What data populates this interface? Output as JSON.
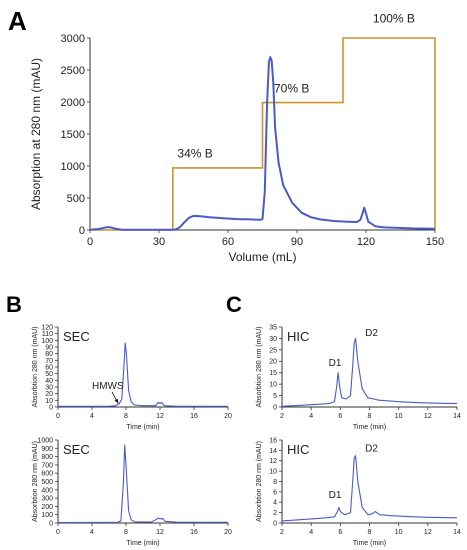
{
  "panels": {
    "a": "A",
    "b": "B",
    "c": "C"
  },
  "colors": {
    "trace": "#4a5bc4",
    "gradient": "#c9962e",
    "axis": "#333333"
  },
  "chart_data": [
    {
      "id": "A",
      "type": "line",
      "xlabel": "Volume (mL)",
      "ylabel": "Absorption at 280 nm (mAU)",
      "xlim": [
        0,
        150
      ],
      "ylim": [
        0,
        3000
      ],
      "xticks": [
        0,
        30,
        60,
        90,
        120,
        150
      ],
      "yticks": [
        0,
        500,
        1000,
        1500,
        2000,
        2500,
        3000
      ],
      "series": [
        {
          "points": [
            [
              0,
              5
            ],
            [
              4,
              15
            ],
            [
              6,
              35
            ],
            [
              8,
              45
            ],
            [
              9,
              40
            ],
            [
              11,
              20
            ],
            [
              14,
              5
            ],
            [
              36,
              3
            ],
            [
              37,
              5
            ],
            [
              39,
              40
            ],
            [
              41,
              120
            ],
            [
              43,
              190
            ],
            [
              45,
              220
            ],
            [
              48,
              215
            ],
            [
              52,
              200
            ],
            [
              58,
              185
            ],
            [
              64,
              170
            ],
            [
              70,
              165
            ],
            [
              74,
              160
            ],
            [
              75,
              170
            ],
            [
              76,
              600
            ],
            [
              77,
              2000
            ],
            [
              77.8,
              2620
            ],
            [
              78.4,
              2700
            ],
            [
              79,
              2640
            ],
            [
              79.7,
              2300
            ],
            [
              80.5,
              1600
            ],
            [
              82,
              1050
            ],
            [
              84,
              700
            ],
            [
              88,
              420
            ],
            [
              92,
              270
            ],
            [
              96,
              200
            ],
            [
              100,
              165
            ],
            [
              106,
              140
            ],
            [
              112,
              130
            ],
            [
              116,
              125
            ],
            [
              117.5,
              160
            ],
            [
              118.5,
              260
            ],
            [
              119.2,
              350
            ],
            [
              120,
              260
            ],
            [
              121,
              130
            ],
            [
              124,
              60
            ],
            [
              128,
              40
            ],
            [
              140,
              25
            ],
            [
              150,
              20
            ]
          ]
        }
      ],
      "gradient_steps": [
        [
          0,
          0
        ],
        [
          36,
          0
        ],
        [
          36,
          970
        ],
        [
          75,
          970
        ],
        [
          75,
          1990
        ],
        [
          110,
          1990
        ],
        [
          110,
          3000
        ],
        [
          150,
          3000
        ],
        [
          150,
          0
        ]
      ],
      "annotations": [
        {
          "text": "34% B",
          "x": 38,
          "y": 1130
        },
        {
          "text": "70% B",
          "x": 80,
          "y": 2150
        },
        {
          "text": "100% B",
          "x": 123,
          "y": 3240
        }
      ]
    },
    {
      "id": "B-top",
      "type": "line",
      "title": "SEC",
      "xlabel": "Time (min)",
      "ylabel": "Absorbtion 280 nm (mAU)",
      "xlim": [
        0,
        20
      ],
      "ylim": [
        0,
        120
      ],
      "xticks": [
        0,
        4,
        8,
        12,
        16,
        20
      ],
      "yticks": [
        0,
        10,
        20,
        30,
        40,
        50,
        60,
        70,
        80,
        90,
        100,
        110,
        120
      ],
      "series": [
        {
          "points": [
            [
              0,
              1
            ],
            [
              6,
              1
            ],
            [
              6.8,
              2
            ],
            [
              7.2,
              5
            ],
            [
              7.5,
              12
            ],
            [
              7.75,
              60
            ],
            [
              7.9,
              96
            ],
            [
              8.05,
              80
            ],
            [
              8.3,
              25
            ],
            [
              8.6,
              8
            ],
            [
              9,
              3
            ],
            [
              10,
              2
            ],
            [
              11.5,
              2
            ],
            [
              11.8,
              7
            ],
            [
              12,
              5
            ],
            [
              12.2,
              7
            ],
            [
              12.5,
              2
            ],
            [
              14,
              1
            ],
            [
              20,
              1
            ]
          ]
        }
      ],
      "annotations": [
        {
          "text": "HMWS",
          "x": 4,
          "y": 27,
          "arrow_to": [
            7.1,
            5
          ]
        }
      ]
    },
    {
      "id": "B-bottom",
      "type": "line",
      "title": "SEC",
      "xlabel": "Time (min)",
      "ylabel": "Absorbtion 280 nm (mAU)",
      "xlim": [
        0,
        20
      ],
      "ylim": [
        0,
        1000
      ],
      "xticks": [
        0,
        4,
        8,
        12,
        16,
        20
      ],
      "yticks": [
        0,
        100,
        200,
        300,
        400,
        500,
        600,
        700,
        800,
        900,
        1000
      ],
      "series": [
        {
          "points": [
            [
              0,
              5
            ],
            [
              7,
              8
            ],
            [
              7.4,
              25
            ],
            [
              7.7,
              500
            ],
            [
              7.85,
              940
            ],
            [
              8.0,
              700
            ],
            [
              8.3,
              150
            ],
            [
              8.6,
              40
            ],
            [
              9,
              15
            ],
            [
              11,
              12
            ],
            [
              11.5,
              40
            ],
            [
              11.8,
              60
            ],
            [
              12,
              50
            ],
            [
              12.3,
              55
            ],
            [
              12.6,
              20
            ],
            [
              14,
              10
            ],
            [
              20,
              8
            ]
          ]
        }
      ]
    },
    {
      "id": "C-top",
      "type": "line",
      "title": "HIC",
      "xlabel": "Time (min)",
      "ylabel": "Absorbtion 280 nm (mAU)",
      "xlim": [
        2,
        14
      ],
      "ylim": [
        0,
        35
      ],
      "xticks": [
        2,
        4,
        6,
        8,
        10,
        12,
        14
      ],
      "yticks": [
        0,
        5,
        10,
        15,
        20,
        25,
        30,
        35
      ],
      "series": [
        {
          "points": [
            [
              2,
              0.3
            ],
            [
              3,
              0.6
            ],
            [
              4,
              1
            ],
            [
              5,
              1.4
            ],
            [
              5.4,
              1.8
            ],
            [
              5.6,
              2.5
            ],
            [
              5.75,
              9
            ],
            [
              5.85,
              15
            ],
            [
              5.95,
              9
            ],
            [
              6.1,
              4
            ],
            [
              6.4,
              3.5
            ],
            [
              6.7,
              5
            ],
            [
              6.85,
              18
            ],
            [
              6.95,
              28
            ],
            [
              7.05,
              30
            ],
            [
              7.2,
              20
            ],
            [
              7.5,
              8
            ],
            [
              7.9,
              4
            ],
            [
              8.3,
              3.5
            ],
            [
              8.6,
              3
            ],
            [
              9,
              2.8
            ],
            [
              10,
              2.3
            ],
            [
              11,
              2
            ],
            [
              12,
              1.8
            ],
            [
              13,
              1.6
            ],
            [
              14,
              1.5
            ]
          ]
        }
      ],
      "annotations": [
        {
          "text": "D1",
          "x": 5.2,
          "y": 18
        },
        {
          "text": "D2",
          "x": 7.7,
          "y": 31
        }
      ]
    },
    {
      "id": "C-bottom",
      "type": "line",
      "title": "HIC",
      "xlabel": "Time (min)",
      "ylabel": "Absorbtion 280 nm (mAU)",
      "xlim": [
        2,
        14
      ],
      "ylim": [
        0,
        16
      ],
      "xticks": [
        2,
        4,
        6,
        8,
        10,
        12,
        14
      ],
      "yticks": [
        0,
        2,
        4,
        6,
        8,
        10,
        12,
        14,
        16
      ],
      "series": [
        {
          "points": [
            [
              2,
              0.4
            ],
            [
              3,
              0.6
            ],
            [
              4,
              0.8
            ],
            [
              5,
              1
            ],
            [
              5.6,
              1.2
            ],
            [
              5.8,
              2.2
            ],
            [
              5.9,
              3
            ],
            [
              6.0,
              2.2
            ],
            [
              6.3,
              1.6
            ],
            [
              6.7,
              2
            ],
            [
              6.85,
              8
            ],
            [
              6.95,
              12.5
            ],
            [
              7.05,
              13
            ],
            [
              7.2,
              8
            ],
            [
              7.5,
              3
            ],
            [
              7.9,
              1.6
            ],
            [
              8.2,
              1.8
            ],
            [
              8.4,
              2.2
            ],
            [
              8.7,
              1.6
            ],
            [
              9.5,
              1.4
            ],
            [
              11,
              1.2
            ],
            [
              12,
              1.1
            ],
            [
              14,
              1
            ]
          ]
        }
      ],
      "annotations": [
        {
          "text": "D1",
          "x": 5.2,
          "y": 4.8
        },
        {
          "text": "D2",
          "x": 7.7,
          "y": 13.8
        }
      ]
    }
  ]
}
